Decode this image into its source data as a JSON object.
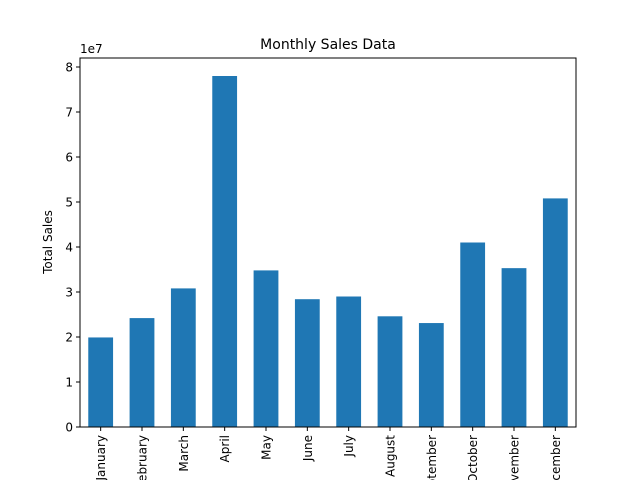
{
  "chart_data": {
    "type": "bar",
    "title": "Monthly Sales Data",
    "xlabel": "",
    "ylabel": "Total Sales",
    "y_offset_label": "1e7",
    "y_scale": 10000000,
    "ylim": [
      0,
      8.2
    ],
    "yticks": [
      0,
      1,
      2,
      3,
      4,
      5,
      6,
      7,
      8
    ],
    "grid": false,
    "categories": [
      "January",
      "February",
      "March",
      "April",
      "May",
      "June",
      "July",
      "August",
      "September",
      "October",
      "November",
      "December"
    ],
    "values": [
      1.99,
      2.42,
      3.08,
      7.8,
      3.48,
      2.84,
      2.9,
      2.46,
      2.31,
      4.1,
      3.53,
      5.08
    ],
    "bar_color": "#1f77b4"
  }
}
